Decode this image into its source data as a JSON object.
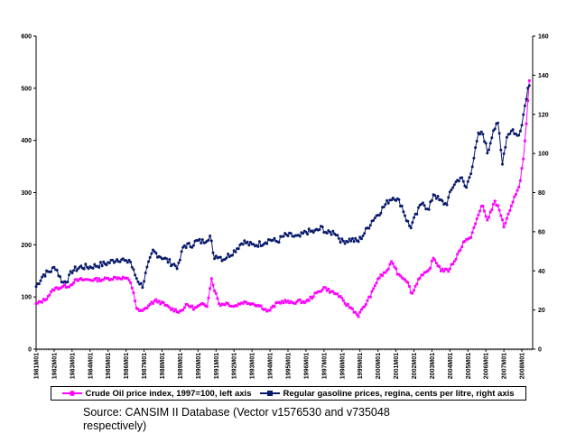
{
  "colors": {
    "crude": "#ff00ff",
    "gas": "#0a1a6b",
    "axis": "#000000"
  },
  "chart_data": {
    "type": "line",
    "left_axis": {
      "min": 0,
      "max": 600,
      "ticks": [
        "0",
        "100",
        "200",
        "300",
        "400",
        "500",
        "600"
      ]
    },
    "right_axis": {
      "min": 0,
      "max": 160,
      "ticks": [
        "0",
        "20",
        "40",
        "60",
        "80",
        "100",
        "120",
        "140",
        "160"
      ]
    },
    "x_start_year": 1981,
    "x_ticks": [
      "1981M01",
      "1982M01",
      "1983M01",
      "1984M01",
      "1985M01",
      "1986M01",
      "1987M01",
      "1988M01",
      "1989M01",
      "1990M01",
      "1991M01",
      "1992M01",
      "1993M01",
      "1994M01",
      "1995M01",
      "1996M01",
      "1997M01",
      "1998M01",
      "1999M01",
      "2000M01",
      "2001M01",
      "2002M01",
      "2003M01",
      "2004M01",
      "2005M01",
      "2006M01",
      "2007M01",
      "2008M01"
    ],
    "series": [
      {
        "name": "Crude Oil price index, 1997=100, left axis",
        "axis": "left",
        "knots": [
          [
            1981.0,
            86
          ],
          [
            1981.5,
            95
          ],
          [
            1982.0,
            115
          ],
          [
            1982.5,
            120
          ],
          [
            1982.9,
            122
          ],
          [
            1983.1,
            130
          ],
          [
            1983.5,
            133
          ],
          [
            1984.0,
            133
          ],
          [
            1984.5,
            133
          ],
          [
            1985.0,
            135
          ],
          [
            1985.5,
            137
          ],
          [
            1986.0,
            136
          ],
          [
            1986.2,
            130
          ],
          [
            1986.4,
            112
          ],
          [
            1986.6,
            75
          ],
          [
            1986.9,
            72
          ],
          [
            1987.4,
            88
          ],
          [
            1987.7,
            93
          ],
          [
            1988.0,
            88
          ],
          [
            1988.5,
            77
          ],
          [
            1989.0,
            72
          ],
          [
            1989.4,
            85
          ],
          [
            1989.8,
            78
          ],
          [
            1990.2,
            85
          ],
          [
            1990.5,
            84
          ],
          [
            1990.75,
            135
          ],
          [
            1990.95,
            110
          ],
          [
            1991.2,
            85
          ],
          [
            1991.6,
            88
          ],
          [
            1992.0,
            82
          ],
          [
            1992.5,
            90
          ],
          [
            1993.0,
            88
          ],
          [
            1993.5,
            82
          ],
          [
            1993.9,
            72
          ],
          [
            1994.4,
            88
          ],
          [
            1994.8,
            92
          ],
          [
            1995.2,
            88
          ],
          [
            1995.6,
            92
          ],
          [
            1996.0,
            90
          ],
          [
            1996.4,
            102
          ],
          [
            1996.8,
            112
          ],
          [
            1997.0,
            118
          ],
          [
            1997.4,
            110
          ],
          [
            1997.8,
            104
          ],
          [
            1998.1,
            90
          ],
          [
            1998.6,
            76
          ],
          [
            1998.9,
            64
          ],
          [
            1999.3,
            85
          ],
          [
            1999.7,
            110
          ],
          [
            2000.0,
            135
          ],
          [
            2000.5,
            150
          ],
          [
            2000.8,
            168
          ],
          [
            2001.1,
            145
          ],
          [
            2001.6,
            132
          ],
          [
            2001.9,
            105
          ],
          [
            2002.3,
            138
          ],
          [
            2002.8,
            148
          ],
          [
            2003.1,
            175
          ],
          [
            2003.5,
            152
          ],
          [
            2003.9,
            150
          ],
          [
            2004.3,
            172
          ],
          [
            2004.8,
            208
          ],
          [
            2005.1,
            210
          ],
          [
            2005.5,
            248
          ],
          [
            2005.8,
            278
          ],
          [
            2006.1,
            245
          ],
          [
            2006.5,
            285
          ],
          [
            2006.8,
            262
          ],
          [
            2007.0,
            235
          ],
          [
            2007.4,
            270
          ],
          [
            2007.7,
            302
          ],
          [
            2007.9,
            318
          ],
          [
            2008.1,
            372
          ],
          [
            2008.25,
            430
          ],
          [
            2008.4,
            510
          ],
          [
            2008.48,
            518
          ]
        ]
      },
      {
        "name": "Regular gasoline prices, regina, cents per litre, right axis",
        "axis": "right",
        "knots": [
          [
            1981.0,
            32
          ],
          [
            1981.4,
            38
          ],
          [
            1981.8,
            40
          ],
          [
            1982.1,
            42
          ],
          [
            1982.3,
            37
          ],
          [
            1982.5,
            34
          ],
          [
            1982.8,
            36
          ],
          [
            1983.0,
            40
          ],
          [
            1983.5,
            42
          ],
          [
            1984.0,
            42
          ],
          [
            1984.5,
            43
          ],
          [
            1985.0,
            44
          ],
          [
            1985.5,
            46
          ],
          [
            1985.8,
            46
          ],
          [
            1986.0,
            44
          ],
          [
            1986.2,
            46
          ],
          [
            1986.4,
            40
          ],
          [
            1986.6,
            36
          ],
          [
            1986.9,
            32
          ],
          [
            1987.2,
            42
          ],
          [
            1987.5,
            50
          ],
          [
            1987.8,
            48
          ],
          [
            1988.0,
            47
          ],
          [
            1988.5,
            44
          ],
          [
            1988.9,
            42
          ],
          [
            1989.2,
            53
          ],
          [
            1989.6,
            53
          ],
          [
            1989.9,
            55
          ],
          [
            1990.3,
            55
          ],
          [
            1990.7,
            58
          ],
          [
            1990.85,
            47
          ],
          [
            1991.1,
            48
          ],
          [
            1991.4,
            46
          ],
          [
            1991.7,
            48
          ],
          [
            1992.0,
            50
          ],
          [
            1992.5,
            55
          ],
          [
            1993.0,
            53
          ],
          [
            1993.5,
            54
          ],
          [
            1994.0,
            56
          ],
          [
            1994.4,
            55
          ],
          [
            1994.8,
            58
          ],
          [
            1995.2,
            58
          ],
          [
            1995.6,
            57
          ],
          [
            1996.0,
            60
          ],
          [
            1996.5,
            60
          ],
          [
            1996.9,
            62
          ],
          [
            1997.2,
            59
          ],
          [
            1997.6,
            60
          ],
          [
            1998.0,
            55
          ],
          [
            1998.5,
            56
          ],
          [
            1998.9,
            55
          ],
          [
            1999.3,
            60
          ],
          [
            1999.7,
            66
          ],
          [
            2000.1,
            70
          ],
          [
            2000.6,
            76
          ],
          [
            2000.9,
            78
          ],
          [
            2001.3,
            74
          ],
          [
            2001.6,
            66
          ],
          [
            2001.8,
            62
          ],
          [
            2002.0,
            66
          ],
          [
            2002.5,
            76
          ],
          [
            2002.8,
            70
          ],
          [
            2003.1,
            80
          ],
          [
            2003.4,
            76
          ],
          [
            2003.8,
            74
          ],
          [
            2004.2,
            84
          ],
          [
            2004.6,
            88
          ],
          [
            2004.9,
            82
          ],
          [
            2005.2,
            92
          ],
          [
            2005.6,
            110
          ],
          [
            2005.85,
            110
          ],
          [
            2006.1,
            100
          ],
          [
            2006.4,
            112
          ],
          [
            2006.7,
            115
          ],
          [
            2006.9,
            95
          ],
          [
            2007.2,
            110
          ],
          [
            2007.5,
            112
          ],
          [
            2007.8,
            108
          ],
          [
            2008.05,
            118
          ],
          [
            2008.3,
            132
          ],
          [
            2008.48,
            138
          ]
        ]
      }
    ]
  },
  "legend": {
    "crude_label": "Crude Oil price index, 1997=100, left axis",
    "gas_label": "Regular gasoline prices, regina, cents per litre, right axis"
  },
  "source_text": "Source: CANSIM II Database (Vector v1576530 and v735048 respectively)"
}
